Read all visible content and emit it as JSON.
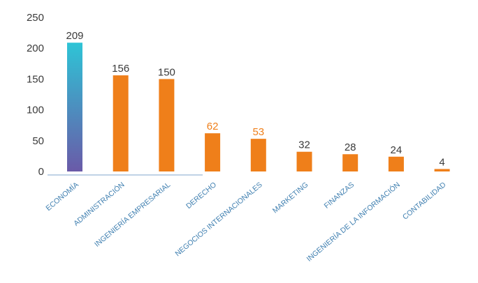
{
  "chart_data": {
    "type": "bar",
    "title": "",
    "xlabel": "",
    "ylabel": "",
    "ylim": [
      0,
      250
    ],
    "yticks": [
      0,
      50,
      100,
      150,
      200,
      250
    ],
    "grid": false,
    "categories": [
      "ECONOMÍA",
      "ADMINISTRACIÓN",
      "INGENIERÍA EMPRESARIAL",
      "DERECHO",
      "NEGOCIOS INTERNACIONALES",
      "MARKETING",
      "FINANZAS",
      "INGENIERÍA DE LA INFORMACIÓN",
      "CONTABILIDAD"
    ],
    "values": [
      209,
      156,
      150,
      62,
      53,
      32,
      28,
      24,
      4
    ],
    "value_labels": [
      "209",
      "156",
      "150",
      "62",
      "53",
      "32",
      "28",
      "24",
      "4"
    ],
    "bar_colors": [
      "gradient-teal-purple",
      "#ef7f1a",
      "#ef7f1a",
      "#ef7f1a",
      "#ef7f1a",
      "#ef7f1a",
      "#ef7f1a",
      "#ef7f1a",
      "#ef7f1a"
    ],
    "value_label_colors": [
      "#3a3a3a",
      "#3a3a3a",
      "#3a3a3a",
      "#ef7f1a",
      "#ef7f1a",
      "#3a3a3a",
      "#3a3a3a",
      "#3a3a3a",
      "#3a3a3a"
    ],
    "colors": {
      "bar": "#ef7f1a",
      "highlight_top": "#2ec4d6",
      "highlight_bottom": "#6a5aa8",
      "axis": "#9ab8d8",
      "category_text": "#3f7fb0"
    }
  }
}
